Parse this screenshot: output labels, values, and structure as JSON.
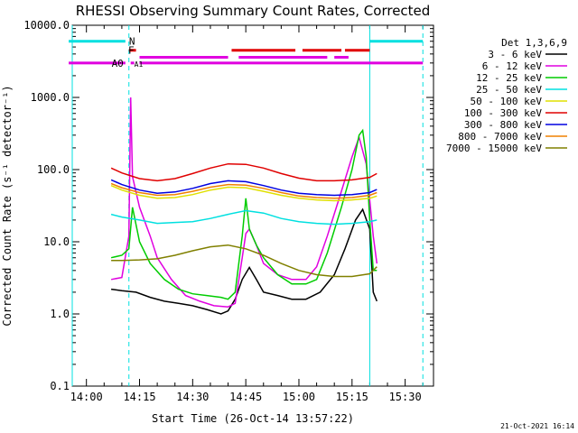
{
  "chart_data": {
    "type": "line",
    "title": "RHESSI Observing Summary Count Rates, Corrected",
    "xlabel": "Start Time (26-Oct-14 13:57:22)",
    "ylabel": "Corrected Count Rate (s⁻¹ detector⁻¹)",
    "yscale": "log",
    "ylim": [
      0.1,
      10000
    ],
    "xlim": [
      "13:56",
      "15:38"
    ],
    "x_ticks": [
      "14:00",
      "14:15",
      "14:30",
      "14:45",
      "15:00",
      "15:15",
      "15:30"
    ],
    "y_ticks": [
      "0.1",
      "1.0",
      "10.0",
      "100.0",
      "1000.0",
      "10000.0"
    ],
    "legend_title": "Det 1,3,6,9",
    "legend_position": "right",
    "x_units": "minutes since 14:00",
    "series": [
      {
        "name": "3 - 6 keV",
        "color": "#000000",
        "x": [
          7,
          10,
          14,
          18,
          22,
          26,
          30,
          34,
          38,
          40,
          42,
          44,
          46,
          48,
          50,
          54,
          58,
          62,
          66,
          70,
          73,
          76,
          78,
          80,
          81,
          82
        ],
        "y": [
          2.2,
          2.1,
          2.0,
          1.7,
          1.5,
          1.4,
          1.3,
          1.15,
          1.0,
          1.1,
          1.6,
          3.0,
          4.4,
          3.0,
          2.0,
          1.8,
          1.6,
          1.6,
          2.0,
          3.5,
          8.0,
          20.0,
          28.0,
          15.0,
          2.0,
          1.5
        ]
      },
      {
        "name": "6 - 12 keV",
        "color": "#e000e0",
        "x": [
          7,
          10,
          12,
          12.5,
          13,
          15,
          18,
          20,
          24,
          28,
          32,
          36,
          40,
          42,
          44,
          45,
          46,
          48,
          50,
          54,
          58,
          62,
          65,
          68,
          72,
          75,
          77,
          79,
          81,
          82
        ],
        "y": [
          3.0,
          3.2,
          12.0,
          1000.0,
          80.0,
          30.0,
          12.0,
          6.0,
          3.0,
          1.8,
          1.5,
          1.3,
          1.25,
          1.4,
          6.0,
          13.0,
          15.0,
          9.0,
          5.0,
          3.5,
          3.0,
          3.0,
          4.5,
          12.0,
          50.0,
          150.0,
          280.0,
          120.0,
          12.0,
          5.0
        ]
      },
      {
        "name": "12 - 25 keV",
        "color": "#00cc00",
        "x": [
          7,
          10,
          12,
          13,
          15,
          18,
          22,
          26,
          30,
          34,
          38,
          40,
          42,
          44,
          45,
          46,
          48,
          50,
          54,
          58,
          62,
          65,
          68,
          72,
          75,
          77,
          78,
          79,
          80,
          81,
          82
        ],
        "y": [
          6.0,
          6.5,
          8.0,
          30.0,
          10.0,
          5.0,
          3.0,
          2.2,
          1.9,
          1.8,
          1.7,
          1.6,
          2.0,
          12.0,
          40.0,
          15.0,
          9.0,
          6.0,
          3.5,
          2.6,
          2.6,
          3.0,
          7.0,
          30.0,
          100.0,
          300.0,
          350.0,
          150.0,
          20.0,
          4.0,
          4.0
        ]
      },
      {
        "name": "25 - 50 keV",
        "color": "#00e0e0",
        "x": [
          7,
          10,
          15,
          20,
          25,
          30,
          35,
          40,
          45,
          50,
          55,
          60,
          65,
          70,
          75,
          80,
          82
        ],
        "y": [
          24.0,
          22.0,
          20.0,
          18.0,
          18.5,
          19.0,
          21.0,
          24.0,
          27.0,
          25.0,
          21.0,
          19.0,
          18.0,
          17.5,
          18.0,
          19.0,
          20.0
        ]
      },
      {
        "name": "50 - 100 keV",
        "color": "#e0e000",
        "x": [
          7,
          10,
          15,
          20,
          25,
          30,
          35,
          40,
          45,
          50,
          55,
          60,
          65,
          70,
          75,
          80,
          82
        ],
        "y": [
          60.0,
          52.0,
          44.0,
          40.0,
          41.0,
          45.0,
          52.0,
          57.0,
          56.0,
          50.0,
          44.0,
          40.0,
          38.0,
          37.0,
          38.0,
          40.0,
          43.0
        ]
      },
      {
        "name": "100 - 300 keV",
        "color": "#e00000",
        "x": [
          7,
          10,
          15,
          20,
          25,
          30,
          35,
          40,
          45,
          50,
          55,
          60,
          65,
          70,
          75,
          80,
          82
        ],
        "y": [
          105.0,
          90.0,
          75.0,
          70.0,
          75.0,
          88.0,
          105.0,
          120.0,
          118.0,
          105.0,
          88.0,
          76.0,
          70.0,
          70.0,
          72.0,
          78.0,
          88.0
        ]
      },
      {
        "name": "300 - 800 keV",
        "color": "#0000e0",
        "x": [
          7,
          10,
          15,
          20,
          25,
          30,
          35,
          40,
          45,
          50,
          55,
          60,
          65,
          70,
          75,
          80,
          82
        ],
        "y": [
          72.0,
          62.0,
          52.0,
          47.0,
          49.0,
          55.0,
          64.0,
          70.0,
          68.0,
          60.0,
          52.0,
          47.0,
          45.0,
          44.0,
          45.0,
          48.0,
          53.0
        ]
      },
      {
        "name": "800 - 7000 keV",
        "color": "#f08000",
        "x": [
          7,
          10,
          15,
          20,
          25,
          30,
          35,
          40,
          45,
          50,
          55,
          60,
          65,
          70,
          75,
          80,
          82
        ],
        "y": [
          64.0,
          56.0,
          48.0,
          44.0,
          45.0,
          50.0,
          57.0,
          62.0,
          61.0,
          55.0,
          48.0,
          43.0,
          41.0,
          40.0,
          41.0,
          44.0,
          48.0
        ]
      },
      {
        "name": "7000 - 15000 keV",
        "color": "#808000",
        "x": [
          7,
          10,
          15,
          20,
          25,
          30,
          35,
          40,
          45,
          50,
          55,
          60,
          65,
          70,
          75,
          80,
          82
        ],
        "y": [
          5.5,
          5.5,
          5.6,
          5.8,
          6.5,
          7.5,
          8.5,
          9.0,
          8.0,
          6.5,
          5.0,
          4.0,
          3.5,
          3.3,
          3.3,
          3.6,
          4.5
        ]
      }
    ],
    "annotations": {
      "flags": [
        {
          "label": "N",
          "color": "#00e0e0",
          "x0": -5,
          "x1": 11,
          "y": 6000
        },
        {
          "label": "",
          "color": "#00e0e0",
          "x0": 80,
          "x1": 95,
          "y": 6000
        },
        {
          "label": "F",
          "color": "#e00000",
          "x0": 12,
          "x1": 14,
          "y": 4500
        },
        {
          "label": "",
          "color": "#e00000",
          "x0": 41,
          "x1": 59,
          "y": 4500
        },
        {
          "label": "",
          "color": "#e00000",
          "x0": 61,
          "x1": 72,
          "y": 4500
        },
        {
          "label": "",
          "color": "#e00000",
          "x0": 73,
          "x1": 80,
          "y": 4500
        },
        {
          "label": "A0",
          "color": "#e000e0",
          "x0": -5,
          "x1": 11,
          "y": 3000
        },
        {
          "label": "",
          "color": "#e000e0",
          "x0": 12.5,
          "x1": 13.5,
          "y": 3000
        },
        {
          "label": "",
          "color": "#e000e0",
          "x0": 15,
          "x1": 95,
          "y": 3000
        },
        {
          "label": "",
          "color": "#e000e0",
          "x0": 15,
          "x1": 40,
          "y": 3600
        },
        {
          "label": "",
          "color": "#e000e0",
          "x0": 43,
          "x1": 68,
          "y": 3600
        },
        {
          "label": "",
          "color": "#e000e0",
          "x0": 70,
          "x1": 74,
          "y": 3600
        }
      ],
      "extra_labels": [
        {
          "text": "A1",
          "color": "#e000e0",
          "x": 13.5,
          "y": 3000
        }
      ],
      "vlines": [
        {
          "x": -4,
          "color": "#00e0e0",
          "style": "solid"
        },
        {
          "x": 12,
          "color": "#00e0e0",
          "style": "dashed"
        },
        {
          "x": 80,
          "color": "#00e0e0",
          "style": "solid"
        },
        {
          "x": 95,
          "color": "#00e0e0",
          "style": "dashed"
        }
      ]
    }
  },
  "footer": {
    "stamp": "21-Oct-2021 16:14"
  }
}
